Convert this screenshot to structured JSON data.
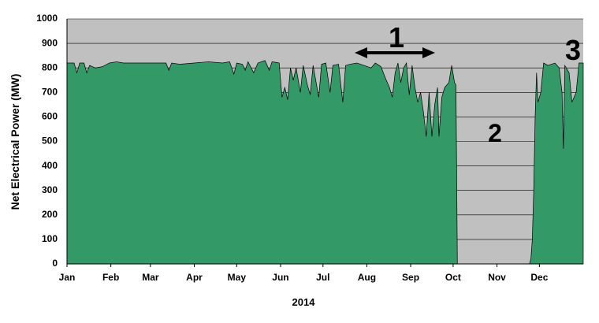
{
  "chart_data": {
    "type": "area",
    "y_label": "Net Electrical Power (MW)",
    "x_label": "2014",
    "annotations": [
      "1",
      "2",
      "3"
    ],
    "color": "#339966",
    "grid": true,
    "xlim": [
      0,
      365
    ],
    "xticks": [
      {
        "value": 0,
        "label": "Jan"
      },
      {
        "value": 31,
        "label": "Feb"
      },
      {
        "value": 59,
        "label": "Mar"
      },
      {
        "value": 90,
        "label": "Apr"
      },
      {
        "value": 120,
        "label": "May"
      },
      {
        "value": 151,
        "label": "Jun"
      },
      {
        "value": 181,
        "label": "Jul"
      },
      {
        "value": 212,
        "label": "Aug"
      },
      {
        "value": 243,
        "label": "Sep"
      },
      {
        "value": 273,
        "label": "Oct"
      },
      {
        "value": 304,
        "label": "Nov"
      },
      {
        "value": 334,
        "label": "Dec"
      }
    ],
    "ylim": [
      0,
      1000
    ],
    "yticks": [
      0,
      100,
      200,
      300,
      400,
      500,
      600,
      700,
      800,
      900,
      1000
    ],
    "x": [
      0,
      5,
      7,
      9,
      12,
      14,
      16,
      20,
      25,
      30,
      35,
      40,
      50,
      60,
      70,
      72,
      74,
      80,
      90,
      100,
      110,
      115,
      118,
      120,
      124,
      126,
      128,
      132,
      135,
      140,
      143,
      145,
      150,
      152,
      154,
      156,
      158,
      160,
      162,
      165,
      167,
      170,
      172,
      174,
      178,
      180,
      183,
      186,
      188,
      192,
      195,
      197,
      200,
      205,
      210,
      215,
      218,
      222,
      225,
      228,
      230,
      232,
      234,
      236,
      238,
      240,
      242,
      244,
      246,
      248,
      250,
      252,
      254,
      256,
      258,
      260,
      262,
      263,
      265,
      267,
      270,
      272,
      274,
      275,
      276,
      327,
      328,
      329,
      330,
      331,
      332,
      333,
      335,
      337,
      340,
      345,
      348,
      350,
      351,
      352,
      355,
      357,
      360,
      362,
      365
    ],
    "values": [
      820,
      820,
      780,
      820,
      820,
      780,
      810,
      800,
      805,
      820,
      825,
      820,
      820,
      820,
      820,
      790,
      820,
      815,
      820,
      825,
      820,
      825,
      775,
      820,
      815,
      790,
      825,
      780,
      820,
      830,
      790,
      825,
      820,
      680,
      720,
      670,
      800,
      750,
      800,
      700,
      810,
      730,
      690,
      810,
      680,
      815,
      820,
      700,
      810,
      815,
      660,
      810,
      815,
      820,
      810,
      800,
      820,
      805,
      760,
      720,
      680,
      780,
      820,
      740,
      800,
      820,
      690,
      810,
      720,
      660,
      700,
      620,
      520,
      700,
      520,
      650,
      720,
      520,
      680,
      720,
      740,
      810,
      740,
      730,
      0,
      0,
      20,
      100,
      300,
      600,
      780,
      660,
      700,
      820,
      810,
      820,
      800,
      700,
      470,
      810,
      780,
      660,
      700,
      820,
      820
    ]
  }
}
